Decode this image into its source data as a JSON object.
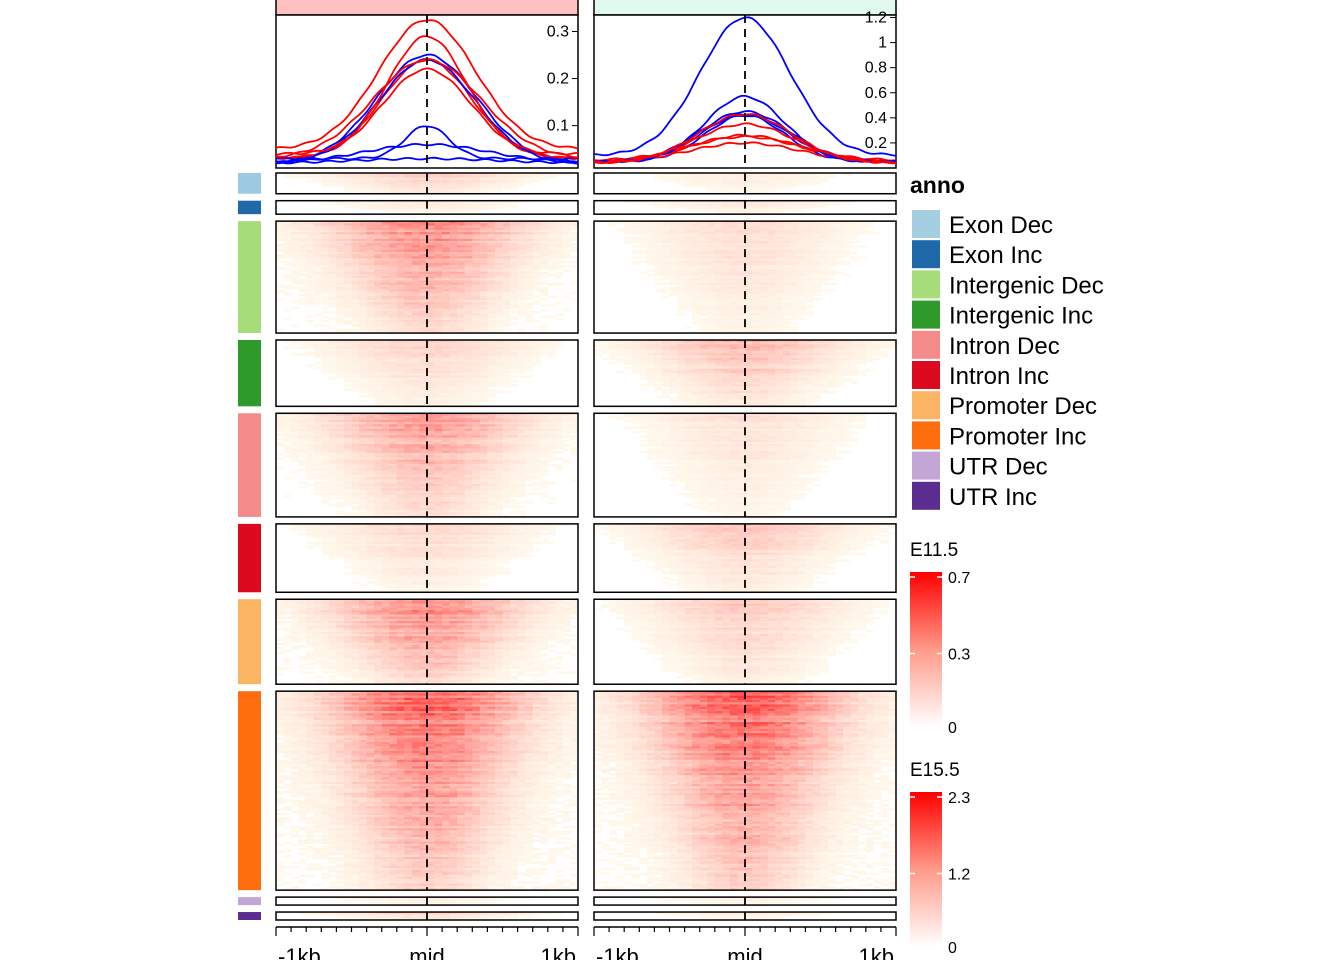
{
  "chart_data": {
    "type": "heatmap",
    "description_free": true,
    "x_tick_labels": [
      "-1kb",
      "mid",
      "1kb"
    ],
    "legend": {
      "title": "anno",
      "items": [
        {
          "label": "Exon Dec",
          "color": "#a6cee3",
          "bar_color": "#9ecae1"
        },
        {
          "label": "Exon Inc",
          "color": "#1f69a8"
        },
        {
          "label": "Intergenic Dec",
          "color": "#a6dc7a"
        },
        {
          "label": "Intergenic Inc",
          "color": "#2e9a2a"
        },
        {
          "label": "Intron Dec",
          "color": "#f48a8a"
        },
        {
          "label": "Intron Inc",
          "color": "#dc0a1e"
        },
        {
          "label": "Promoter Dec",
          "color": "#fbb462"
        },
        {
          "label": "Promoter Inc",
          "color": "#ff6e0e"
        },
        {
          "label": "UTR Dec",
          "color": "#c3a6d6"
        },
        {
          "label": "UTR Inc",
          "color": "#5b2d91"
        }
      ]
    },
    "colorbars": [
      {
        "title": "E11.5",
        "ticks": [
          "0.7",
          "0.3",
          "0"
        ],
        "range": [
          0,
          0.7
        ]
      },
      {
        "title": "E15.5",
        "ticks": [
          "2.3",
          "1.2",
          "0"
        ],
        "range": [
          0,
          2.3
        ]
      }
    ],
    "row_group_sizes": [
      1.0,
      0.65,
      5.4,
      3.2,
      5.0,
      3.3,
      4.1,
      9.6,
      0.3,
      0.3
    ],
    "panels": [
      {
        "name": "E11.5",
        "header_color": "#ffc0c0",
        "y_ticks": [
          {
            "value": 0.3,
            "label": "0.3"
          },
          {
            "value": 0.2,
            "label": "0.2"
          },
          {
            "value": 0.1,
            "label": "0.1"
          }
        ],
        "ylim": [
          0.01,
          0.335
        ],
        "profiles": [
          {
            "group": "Exon Dec",
            "color": "#0000ff",
            "base": 0.02,
            "peak": 0.06,
            "width": 0.35
          },
          {
            "group": "Exon Inc",
            "color": "#ff0000",
            "base": 0.03,
            "peak": 0.24,
            "width": 0.25
          },
          {
            "group": "Intergenic Dec",
            "color": "#0000ff",
            "base": 0.02,
            "peak": 0.25,
            "width": 0.28
          },
          {
            "group": "Intergenic Inc",
            "color": "#ff0000",
            "base": 0.03,
            "peak": 0.22,
            "width": 0.25
          },
          {
            "group": "Intron Dec",
            "color": "#0000ff",
            "base": 0.02,
            "peak": 0.24,
            "width": 0.27
          },
          {
            "group": "Intron Inc",
            "color": "#ff0000",
            "base": 0.04,
            "peak": 0.29,
            "width": 0.22
          },
          {
            "group": "Promoter Dec",
            "color": "#0000ff",
            "base": 0.03,
            "peak": 0.1,
            "width": 0.12
          },
          {
            "group": "Promoter Inc",
            "color": "#ff0000",
            "base": 0.05,
            "peak": 0.325,
            "width": 0.27
          },
          {
            "group": "UTR Dec",
            "color": "#0000ff",
            "base": 0.02,
            "peak": 0.03,
            "width": 0.4
          },
          {
            "group": "UTR Inc",
            "color": "#ff0000",
            "base": 0.03,
            "peak": 0.24,
            "width": 0.3
          }
        ],
        "group_intensity": [
          0.28,
          0.12,
          0.72,
          0.28,
          0.62,
          0.24,
          0.78,
          0.95,
          0.12,
          0.28
        ]
      },
      {
        "name": "E15.5",
        "header_color": "#e0fbee",
        "y_ticks": [
          {
            "value": 1.2,
            "label": "1.2"
          },
          {
            "value": 1,
            "label": "1"
          },
          {
            "value": 0.8,
            "label": "0.8"
          },
          {
            "value": 0.6,
            "label": "0.6"
          },
          {
            "value": 0.4,
            "label": "0.4"
          },
          {
            "value": 0.2,
            "label": "0.2"
          }
        ],
        "ylim": [
          0.0,
          1.22
        ],
        "profiles": [
          {
            "group": "Exon Dec",
            "color": "#0000ff",
            "base": 0.05,
            "peak": 0.42,
            "width": 0.22
          },
          {
            "group": "Exon Inc",
            "color": "#ff0000",
            "base": 0.05,
            "peak": 0.2,
            "width": 0.3
          },
          {
            "group": "Intergenic Dec",
            "color": "#0000ff",
            "base": 0.05,
            "peak": 0.45,
            "width": 0.25
          },
          {
            "group": "Intergenic Inc",
            "color": "#ff0000",
            "base": 0.06,
            "peak": 0.25,
            "width": 0.3
          },
          {
            "group": "Intron Dec",
            "color": "#0000ff",
            "base": 0.05,
            "peak": 0.57,
            "width": 0.22
          },
          {
            "group": "Intron Inc",
            "color": "#ff0000",
            "base": 0.05,
            "peak": 0.26,
            "width": 0.3
          },
          {
            "group": "Promoter Dec",
            "color": "#0000ff",
            "base": 0.05,
            "peak": 0.43,
            "width": 0.24
          },
          {
            "group": "Promoter Inc",
            "color": "#ff0000",
            "base": 0.04,
            "peak": 0.43,
            "width": 0.26
          },
          {
            "group": "UTR Dec",
            "color": "#0000ff",
            "base": 0.1,
            "peak": 1.2,
            "width": 0.25
          },
          {
            "group": "UTR Inc",
            "color": "#ff0000",
            "base": 0.04,
            "peak": 0.35,
            "width": 0.28
          }
        ],
        "group_intensity": [
          0.12,
          0.14,
          0.22,
          0.42,
          0.18,
          0.32,
          0.32,
          0.95,
          0.1,
          0.1
        ]
      }
    ]
  }
}
